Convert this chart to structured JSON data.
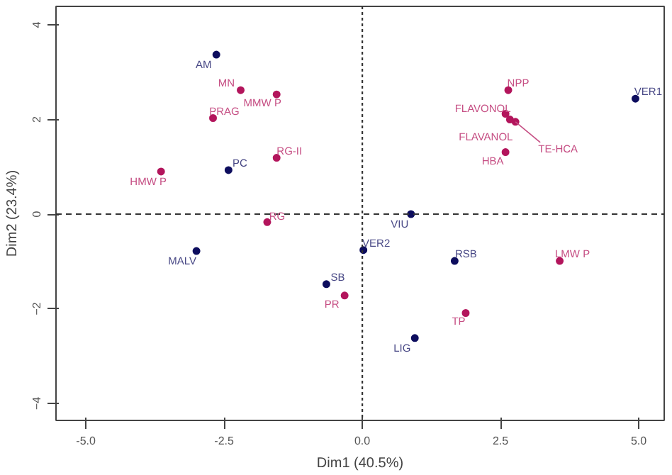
{
  "chart_data": {
    "type": "scatter",
    "xlabel": "Dim1 (40.5%)",
    "ylabel": "Dim2 (23.4%)",
    "xlim": [
      -5.54,
      5.46
    ],
    "ylim": [
      -4.36,
      4.39
    ],
    "xticks": [
      {
        "value": -5,
        "label": "-5.0"
      },
      {
        "value": -2.5,
        "label": "-2.5"
      },
      {
        "value": 0,
        "label": "0.0"
      },
      {
        "value": 2.5,
        "label": "2.5"
      },
      {
        "value": 5,
        "label": "5.0"
      }
    ],
    "yticks": [
      -4,
      -2,
      0,
      2,
      4
    ],
    "grid": false,
    "marker": "circle",
    "series": [
      {
        "color": "#0d0d5e",
        "x": [
          -2.64,
          -2.42,
          -3.0,
          -0.65,
          0.02,
          0.88,
          1.67,
          0.95,
          4.94
        ],
        "values": [
          3.37,
          0.93,
          -0.78,
          -1.48,
          -0.76,
          0.0,
          -0.99,
          -2.62,
          2.44
        ]
      },
      {
        "color": "#b3155c",
        "x": [
          -2.2,
          -1.55,
          -2.7,
          -1.55,
          -3.64,
          -1.72,
          -0.32,
          2.64,
          2.59,
          2.67,
          2.77,
          2.59,
          3.57,
          1.87
        ],
        "values": [
          2.62,
          2.53,
          2.03,
          1.19,
          0.9,
          -0.17,
          -1.72,
          2.62,
          2.12,
          2.0,
          1.95,
          1.31,
          -0.99,
          -2.09
        ]
      }
    ],
    "annotations": [
      {
        "text": "AM",
        "x": -2.64,
        "y": 3.37
      },
      {
        "text": "PC",
        "x": -2.42,
        "y": 0.93
      },
      {
        "text": "MALV",
        "x": -3.0,
        "y": -0.78
      },
      {
        "text": "SB",
        "x": -0.65,
        "y": -1.48
      },
      {
        "text": "VER2",
        "x": 0.02,
        "y": -0.76
      },
      {
        "text": "VIU",
        "x": 0.88,
        "y": 0.0
      },
      {
        "text": "RSB",
        "x": 1.67,
        "y": -0.99
      },
      {
        "text": "LIG",
        "x": 0.95,
        "y": -2.62
      },
      {
        "text": "VER1",
        "x": 4.94,
        "y": 2.44
      },
      {
        "text": "MN",
        "x": -2.2,
        "y": 2.62
      },
      {
        "text": "MMW P",
        "x": -1.55,
        "y": 2.53
      },
      {
        "text": "PRAG",
        "x": -2.7,
        "y": 2.03
      },
      {
        "text": "RG-II",
        "x": -1.55,
        "y": 1.19
      },
      {
        "text": "HMW P",
        "x": -3.64,
        "y": 0.9
      },
      {
        "text": "RG",
        "x": -1.72,
        "y": -0.17
      },
      {
        "text": "PR",
        "x": -0.32,
        "y": -1.72
      },
      {
        "text": "NPP",
        "x": 2.64,
        "y": 2.62
      },
      {
        "text": "FLAVONOL",
        "x": 2.59,
        "y": 2.12
      },
      {
        "text": "FLAVANOL",
        "x": 2.67,
        "y": 2.0
      },
      {
        "text": "TE-HCA",
        "x": 2.77,
        "y": 1.95
      },
      {
        "text": "HBA",
        "x": 2.59,
        "y": 1.31
      },
      {
        "text": "LMW P",
        "x": 3.57,
        "y": -0.99
      },
      {
        "text": "TP",
        "x": 1.87,
        "y": -2.09
      }
    ],
    "ref_lines": [
      {
        "axis": "x",
        "value": 0,
        "line_style": "dotted",
        "color": "#333333"
      },
      {
        "axis": "y",
        "value": 0,
        "line_style": "dashed",
        "color": "#333333"
      }
    ]
  }
}
